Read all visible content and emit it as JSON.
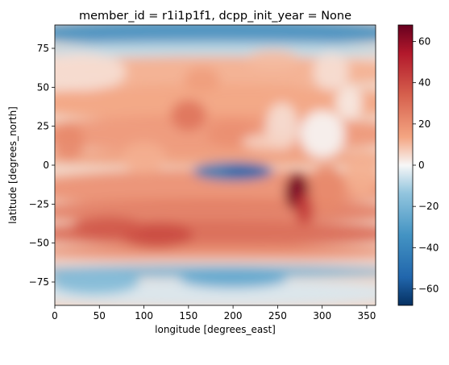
{
  "chart_data": {
    "type": "heatmap",
    "title": "member_id = r1i1p1f1, dcpp_init_year = None",
    "xlabel": "longitude [degrees_east]",
    "ylabel": "latitude [degrees_north]",
    "xlim": [
      0,
      360
    ],
    "ylim": [
      -90,
      90
    ],
    "x_ticks": [
      "0",
      "50",
      "100",
      "150",
      "200",
      "250",
      "300",
      "350"
    ],
    "y_ticks": [
      "75",
      "50",
      "25",
      "0",
      "−25",
      "−50",
      "−75"
    ],
    "colormap": "RdBu_r",
    "color_range": [
      -68,
      68
    ],
    "colorbar_ticks": [
      "60",
      "40",
      "20",
      "0",
      "−20",
      "−40",
      "−60"
    ],
    "colors": {
      "min": "#0a3a70",
      "zero": "#f7f7f7",
      "max": "#6f0a1f"
    },
    "features": [
      {
        "name": "Arctic",
        "lat_range": [
          78,
          90
        ],
        "approx_value": -38
      },
      {
        "name": "Antarctic coastal band",
        "lat_range": [
          -72,
          -64
        ],
        "approx_value": -28
      },
      {
        "name": "Southern Ocean band",
        "lat_range": [
          -55,
          -35
        ],
        "approx_value": 32
      },
      {
        "name": "Eastern equatorial Pacific",
        "lon_range": [
          155,
          235
        ],
        "lat_range": [
          -10,
          0
        ],
        "approx_value": -42
      },
      {
        "name": "Southeast Pacific near South America",
        "lon_range": [
          260,
          285
        ],
        "lat_range": [
          -30,
          -10
        ],
        "approx_value": 64
      }
    ]
  }
}
